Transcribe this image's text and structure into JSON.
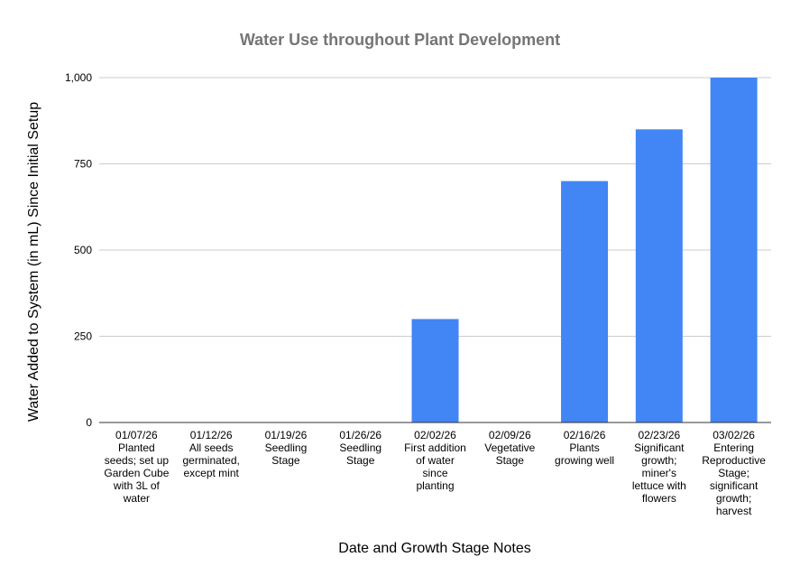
{
  "chart_data": {
    "type": "bar",
    "title": "Water Use throughout Plant Development",
    "xlabel": "Date and Growth Stage Notes",
    "ylabel": "Water Added to System (in mL) Since Initial Setup",
    "ylim": [
      0,
      1000
    ],
    "yticks": [
      0,
      250,
      500,
      750,
      1000
    ],
    "ytick_labels": [
      "0",
      "250",
      "500",
      "750",
      "1,000"
    ],
    "grid": true,
    "legend": "none",
    "bar_color": "#4285f4",
    "categories": [
      [
        "01/07/26",
        "Planted",
        "seeds; set up",
        "Garden Cube",
        "with 3L of",
        "water"
      ],
      [
        "01/12/26",
        "All seeds",
        "germinated,",
        "except mint"
      ],
      [
        "01/19/26",
        "Seedling",
        "Stage"
      ],
      [
        "01/26/26",
        "Seedling",
        "Stage"
      ],
      [
        "02/02/26",
        "First addition",
        "of water",
        "since",
        "planting"
      ],
      [
        "02/09/26",
        "Vegetative",
        "Stage"
      ],
      [
        "02/16/26",
        "Plants",
        "growing well"
      ],
      [
        "02/23/26",
        "Significant",
        "growth;",
        "miner's",
        "lettuce with",
        "flowers"
      ],
      [
        "03/02/26",
        "Entering",
        "Reproductive",
        "Stage;",
        "significant",
        "growth;",
        "harvest"
      ]
    ],
    "values": [
      0,
      0,
      0,
      0,
      300,
      0,
      700,
      850,
      1000
    ]
  }
}
